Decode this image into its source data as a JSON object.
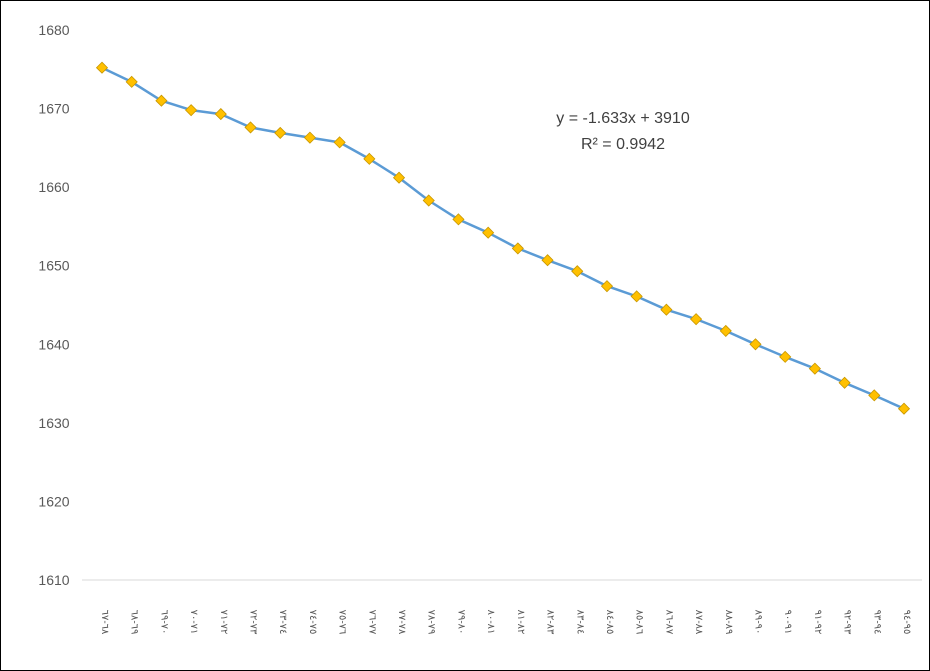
{
  "chart_data": {
    "type": "line",
    "title": "",
    "xlabel": "",
    "ylabel": "",
    "ylim": [
      1610,
      1680
    ],
    "yticks": [
      1610,
      1620,
      1630,
      1640,
      1650,
      1660,
      1670,
      1680
    ],
    "grid": false,
    "legend": "none",
    "categories": [
      "٦٨-٦٧",
      "٦٩-٦٨",
      "٧٠-٦٩",
      "٧١-٧٠",
      "٧٢-٧١",
      "٧٣-٧٢",
      "٧٤-٧٣",
      "٧٥-٧٤",
      "٧٦-٧٥",
      "٧٧-٧٦",
      "٧٨-٧٧",
      "٧٩-٧٨",
      "٨٠-٧٩",
      "٨١-٨٠",
      "٨٢-٨١",
      "٨٣-٨٢",
      "٨٤-٨٣",
      "٨٥-٨٤",
      "٨٦-٨٥",
      "٨٧-٨٦",
      "٨٨-٨٧",
      "٨٩-٨٨",
      "٩٠-٨٩",
      "٩١-٩٠",
      "٩٢-٩١",
      "٩٣-٩٢",
      "٩٤-٩٣",
      "٩٥-٩٤"
    ],
    "series": [
      {
        "values": [
          1675.2,
          1673.4,
          1671.0,
          1669.8,
          1669.3,
          1667.6,
          1666.9,
          1666.3,
          1665.7,
          1663.6,
          1661.2,
          1658.3,
          1655.9,
          1654.2,
          1652.2,
          1650.7,
          1649.3,
          1647.4,
          1646.1,
          1644.4,
          1643.2,
          1641.7,
          1640.0,
          1638.4,
          1636.9,
          1635.1,
          1633.5,
          1631.8
        ],
        "color": "#5B9BD5",
        "marker_color": "#FFC000",
        "marker": "diamond"
      }
    ],
    "annotations": [
      "y = -1.633x + 3910",
      "R² = 0.9942"
    ]
  }
}
